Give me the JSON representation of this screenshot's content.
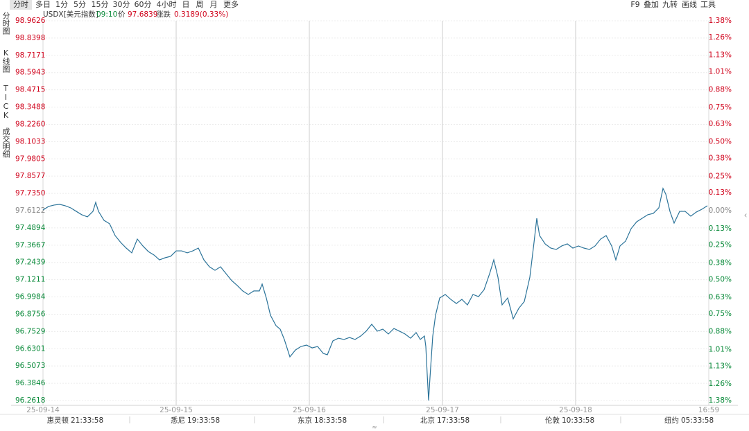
{
  "toolbar": {
    "periods": [
      "分时",
      "多日",
      "1分",
      "5分",
      "15分",
      "30分",
      "60分",
      "4小时",
      "日",
      "周",
      "月",
      "更多"
    ],
    "tools": [
      "F9",
      "叠加",
      "九转",
      "画线",
      "工具"
    ]
  },
  "side_tabs": [
    "分时图",
    "K线图",
    "TICK",
    "成交明细"
  ],
  "quote": {
    "symbol": "USDX[美元指数]",
    "time": "09:10",
    "price_label": "价",
    "price": "97.6839",
    "change_label": "涨跌",
    "change": "0.3189(0.33%)"
  },
  "chart_data": {
    "type": "line",
    "color": "#2b7399",
    "grid": true,
    "x": [
      0,
      1,
      2,
      3,
      4,
      5,
      6,
      7,
      8,
      9,
      9.5,
      10,
      11,
      12,
      13,
      14,
      15,
      16,
      17,
      18,
      19,
      20,
      21,
      22,
      23,
      24,
      25,
      26,
      27,
      28,
      29,
      30,
      31,
      32,
      33,
      34,
      35,
      36,
      37,
      38,
      39,
      39.5,
      40.25,
      41,
      42,
      42.75,
      43.5,
      44.5,
      45.5,
      46.5,
      47.5,
      48.5,
      49.5,
      50.5,
      51.25,
      52.25,
      53.25,
      54.25,
      55.25,
      56.25,
      57.25,
      58.25,
      59.25,
      60.25,
      61.25,
      62.25,
      63.25,
      64.25,
      65.25,
      66.25,
      67.25,
      68,
      68.75,
      69,
      69.25,
      69.5,
      69.75,
      70.25,
      70.75,
      71.5,
      72.5,
      73.5,
      74.5,
      75.5,
      76.5,
      77.5,
      78.5,
      79.5,
      80.5,
      81.25,
      82,
      82.75,
      83.75,
      84.75,
      85.75,
      86.75,
      87.75,
      88.5,
      89,
      89.5,
      90.5,
      91.5,
      92.5,
      93.5,
      94.5,
      95.5,
      96.5,
      97.5,
      98.5,
      99.5,
      100.5,
      101.5,
      102.5,
      103.25,
      104,
      105,
      106,
      107,
      108,
      109,
      110,
      111,
      111.75,
      112.25,
      113,
      113.75,
      114.75,
      115.75,
      116.75,
      117.75,
      118.75,
      119.75
    ],
    "values": [
      97.617,
      97.642,
      97.652,
      97.657,
      97.647,
      97.632,
      97.607,
      97.583,
      97.568,
      97.607,
      97.671,
      97.607,
      97.543,
      97.519,
      97.435,
      97.386,
      97.346,
      97.312,
      97.41,
      97.361,
      97.321,
      97.297,
      97.262,
      97.277,
      97.287,
      97.326,
      97.326,
      97.312,
      97.326,
      97.346,
      97.262,
      97.213,
      97.188,
      97.213,
      97.164,
      97.115,
      97.08,
      97.041,
      97.016,
      97.041,
      97.041,
      97.09,
      96.991,
      96.868,
      96.794,
      96.769,
      96.696,
      96.572,
      96.621,
      96.646,
      96.656,
      96.636,
      96.646,
      96.597,
      96.587,
      96.686,
      96.705,
      96.696,
      96.71,
      96.696,
      96.72,
      96.755,
      96.804,
      96.755,
      96.769,
      96.735,
      96.774,
      96.755,
      96.735,
      96.705,
      96.745,
      96.696,
      96.72,
      96.646,
      96.449,
      96.262,
      96.425,
      96.72,
      96.868,
      96.991,
      97.016,
      96.981,
      96.952,
      96.981,
      96.942,
      97.016,
      97.001,
      97.05,
      97.164,
      97.262,
      97.139,
      96.942,
      96.991,
      96.843,
      96.917,
      96.966,
      97.139,
      97.386,
      97.558,
      97.435,
      97.376,
      97.346,
      97.336,
      97.361,
      97.376,
      97.346,
      97.361,
      97.346,
      97.336,
      97.361,
      97.41,
      97.435,
      97.361,
      97.262,
      97.361,
      97.395,
      97.484,
      97.533,
      97.558,
      97.583,
      97.593,
      97.632,
      97.77,
      97.73,
      97.607,
      97.524,
      97.607,
      97.607,
      97.573,
      97.602,
      97.622,
      97.647
    ],
    "xlim": [
      0,
      120
    ],
    "xticks": [
      {
        "value": 0,
        "label": "25-09-14"
      },
      {
        "value": 24,
        "label": "25-09-15"
      },
      {
        "value": 48,
        "label": "25-09-16"
      },
      {
        "value": 72,
        "label": "25-09-17"
      },
      {
        "value": 96,
        "label": "25-09-18"
      },
      {
        "value": 120,
        "label": "16:59"
      }
    ],
    "ylim": [
      96.2618,
      98.9626
    ],
    "yticks": [
      98.9626,
      98.8398,
      98.7171,
      98.5943,
      98.4715,
      98.3488,
      {
        "value": 98.226,
        "label": "98.2260"
      },
      98.1033,
      97.9805,
      97.8577,
      {
        "value": 97.735,
        "label": "97.7350"
      },
      97.6122,
      97.4894,
      97.3667,
      97.2439,
      97.1211,
      96.9984,
      96.8756,
      96.7529,
      96.6301,
      96.5073,
      96.3846,
      96.2618
    ],
    "y2lim": [
      -1.38,
      1.38
    ],
    "y2ticks": [
      {
        "value": 1.38,
        "label": "1.38%"
      },
      {
        "value": 1.26,
        "label": "1.26%"
      },
      {
        "value": 1.13,
        "label": "1.13%"
      },
      {
        "value": 1.01,
        "label": "1.01%"
      },
      {
        "value": 0.88,
        "label": "0.88%"
      },
      {
        "value": 0.75,
        "label": "0.75%"
      },
      {
        "value": 0.63,
        "label": "0.63%"
      },
      {
        "value": 0.5,
        "label": "0.50%"
      },
      {
        "value": 0.38,
        "label": "0.38%"
      },
      {
        "value": 0.25,
        "label": "0.25%"
      },
      {
        "value": 0.13,
        "label": "0.13%"
      },
      {
        "value": 0,
        "label": "0.00%"
      },
      {
        "value": -0.13,
        "label": "0.13%"
      },
      {
        "value": -0.25,
        "label": "0.25%"
      },
      {
        "value": -0.38,
        "label": "0.38%"
      },
      {
        "value": -0.5,
        "label": "0.50%"
      },
      {
        "value": -0.63,
        "label": "0.63%"
      },
      {
        "value": -0.75,
        "label": "0.75%"
      },
      {
        "value": -0.88,
        "label": "0.88%"
      },
      {
        "value": -1.01,
        "label": "1.01%"
      },
      {
        "value": -1.13,
        "label": "1.13%"
      },
      {
        "value": -1.26,
        "label": "1.26%"
      },
      {
        "value": -1.38,
        "label": "1.38%"
      }
    ]
  },
  "world_clocks": [
    {
      "city": "惠灵顿",
      "time": "21:33:58"
    },
    {
      "city": "悉尼",
      "time": "19:33:58"
    },
    {
      "city": "东京",
      "time": "18:33:58"
    },
    {
      "city": "北京",
      "time": "17:33:58"
    },
    {
      "city": "伦敦",
      "time": "10:33:58"
    },
    {
      "city": "纽约",
      "time": "05:33:58"
    }
  ]
}
